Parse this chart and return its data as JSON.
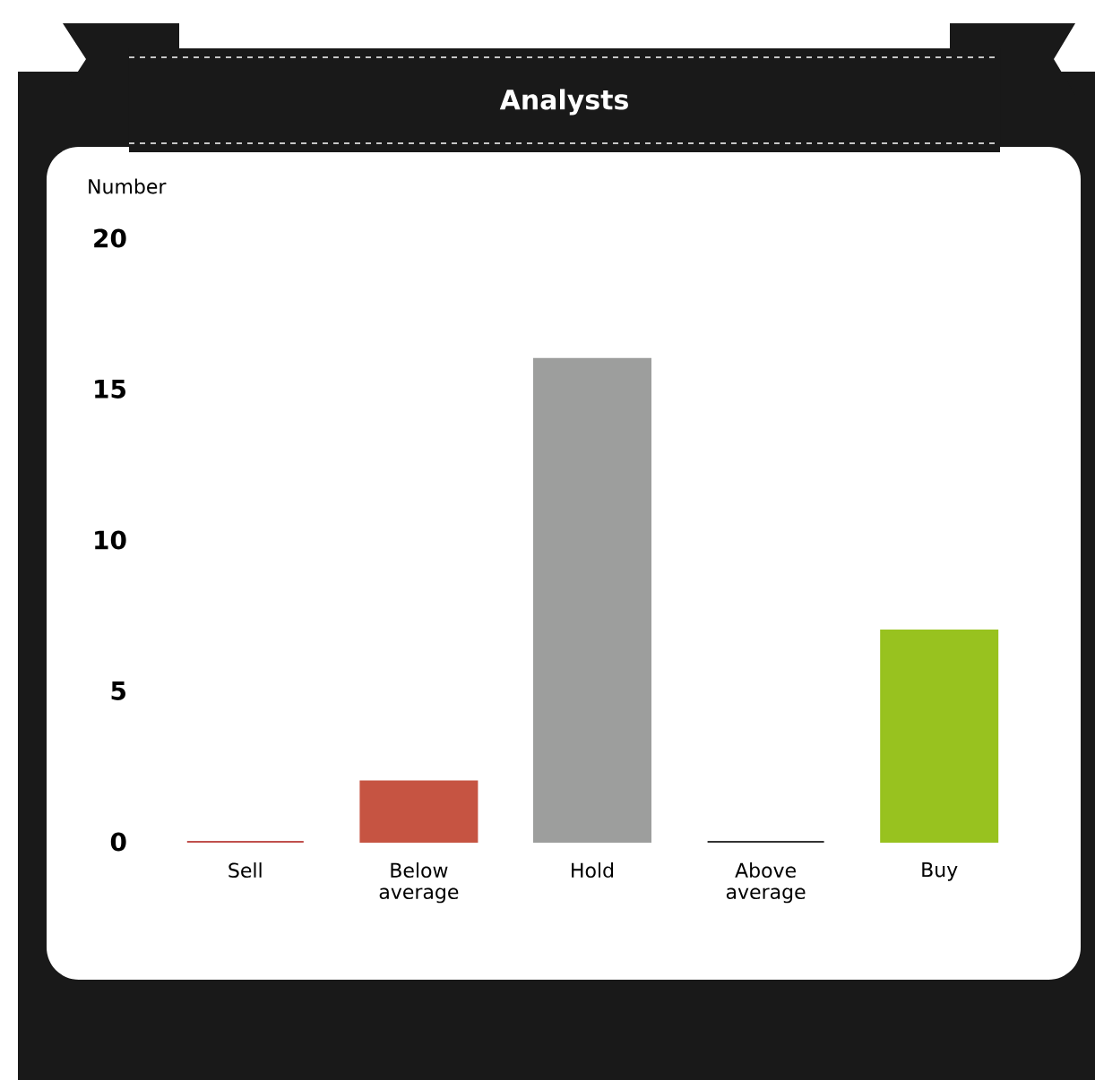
{
  "chart_data": {
    "type": "bar",
    "title": "Analysts",
    "ylabel": "Number",
    "categories": [
      "Sell",
      "Below average",
      "Hold",
      "Above average",
      "Buy"
    ],
    "values": [
      0,
      2,
      16,
      0,
      7
    ],
    "colors": [
      "#c0504d",
      "#c65442",
      "#9d9e9d",
      "#333333",
      "#98c21f"
    ],
    "ylim": [
      0,
      20
    ],
    "yticks": [
      0,
      5,
      10,
      15,
      20
    ],
    "grid": false
  }
}
